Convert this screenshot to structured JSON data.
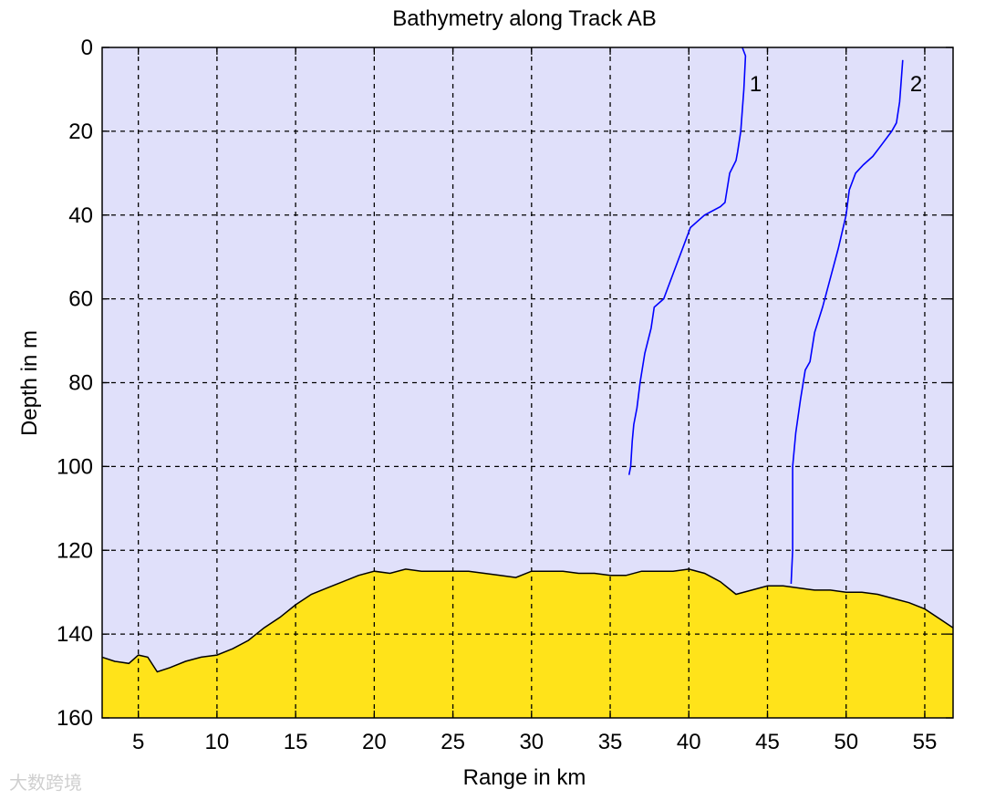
{
  "chart_data": {
    "type": "area",
    "title": "Bathymetry along Track AB",
    "xlabel": "Range in km",
    "ylabel": "Depth in m",
    "xlim": [
      2.7,
      56.8
    ],
    "ylim": [
      0,
      160
    ],
    "y_inverted": true,
    "grid": true,
    "xticks": [
      5,
      10,
      15,
      20,
      25,
      30,
      35,
      40,
      45,
      50,
      55
    ],
    "yticks": [
      0,
      20,
      40,
      60,
      80,
      100,
      120,
      140,
      160
    ],
    "plot_background": "#e0e0fa",
    "seabed": {
      "fill_color": "#ffe31a",
      "range_km": [
        2.7,
        3.5,
        4.4,
        5.0,
        5.6,
        6.2,
        7.0,
        8.0,
        9.0,
        10.0,
        11.0,
        12.0,
        13.0,
        14.0,
        15.0,
        16.0,
        17.0,
        18.0,
        19.0,
        20.0,
        21.0,
        22.0,
        23.0,
        24.0,
        25.0,
        26.0,
        27.0,
        28.0,
        29.0,
        30.0,
        31.0,
        32.0,
        33.0,
        34.0,
        35.0,
        36.0,
        37.0,
        38.0,
        39.0,
        40.0,
        41.0,
        42.0,
        43.0,
        44.0,
        45.0,
        46.0,
        47.0,
        48.0,
        49.0,
        50.0,
        51.0,
        52.0,
        53.0,
        54.0,
        55.0,
        56.0,
        56.8
      ],
      "depth_m": [
        145.5,
        146.5,
        147.0,
        145.0,
        145.5,
        149.0,
        148.0,
        146.5,
        145.5,
        145.0,
        143.5,
        141.5,
        138.5,
        136.0,
        133.0,
        130.5,
        129.0,
        127.5,
        126.0,
        125.0,
        125.5,
        124.5,
        125.0,
        125.0,
        125.0,
        125.0,
        125.5,
        126.0,
        126.5,
        125.0,
        125.0,
        125.0,
        125.5,
        125.5,
        126.0,
        126.0,
        125.0,
        125.0,
        125.0,
        124.5,
        125.5,
        127.5,
        130.5,
        129.5,
        128.5,
        128.5,
        129.0,
        129.5,
        129.5,
        130.0,
        130.0,
        130.5,
        131.5,
        132.5,
        134.0,
        136.5,
        138.5
      ]
    },
    "series": [
      {
        "name": "1",
        "color": "#0000ff",
        "range_km": [
          43.4,
          43.6,
          43.5,
          43.3,
          43.1,
          43.0,
          42.6,
          42.3,
          42.0,
          41.0,
          40.1,
          39.6,
          39.0,
          38.4,
          37.8,
          37.6,
          37.2,
          36.9,
          36.7,
          36.5,
          36.4,
          36.3,
          36.2
        ],
        "depth_m": [
          0,
          2,
          10,
          20,
          25,
          27,
          30,
          37,
          38,
          40,
          43,
          48,
          54,
          60,
          62,
          67,
          73,
          80,
          86,
          90,
          94,
          100,
          102
        ]
      },
      {
        "name": "2",
        "color": "#0000ff",
        "range_km": [
          53.6,
          53.5,
          53.4,
          53.2,
          52.9,
          52.3,
          51.7,
          51.1,
          50.6,
          50.2,
          50.0,
          49.5,
          49.0,
          48.5,
          48.0,
          47.7,
          47.4,
          47.1,
          46.8,
          46.6,
          46.6,
          46.6,
          46.5
        ],
        "depth_m": [
          3,
          8,
          13,
          18,
          20,
          23,
          26,
          28,
          30,
          34,
          40,
          48,
          55,
          62,
          68,
          75,
          77,
          84,
          92,
          100,
          110,
          120,
          128
        ]
      }
    ]
  },
  "watermark": "大数跨境"
}
